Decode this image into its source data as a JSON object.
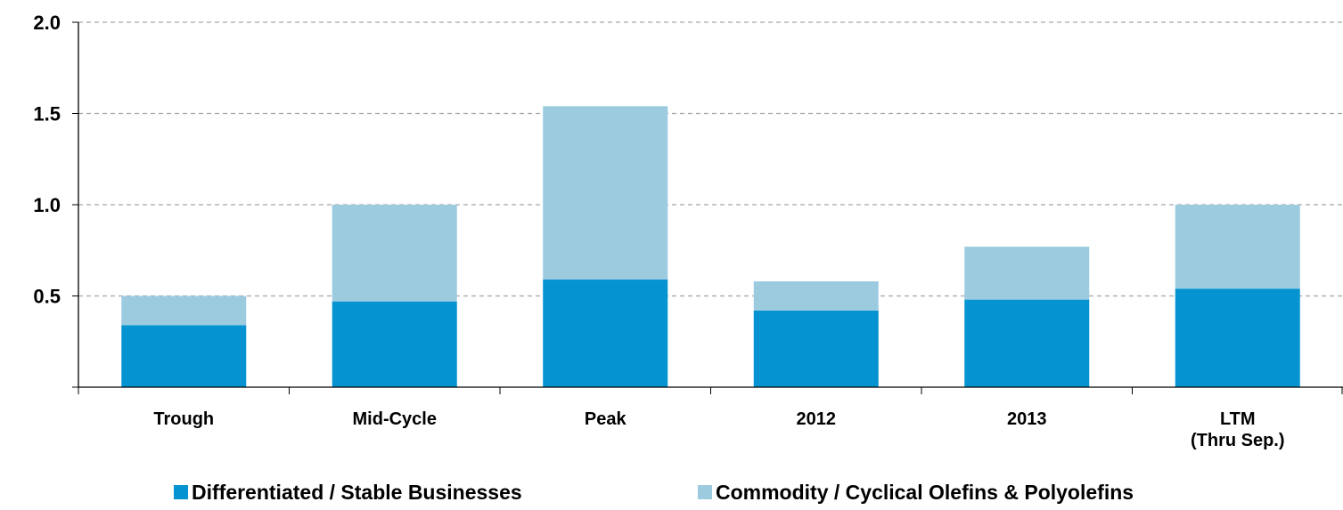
{
  "chart_data": {
    "type": "stacked_bar",
    "categories": [
      "Trough",
      "Mid-Cycle",
      "Peak",
      "2012",
      "2013",
      "LTM\n(Thru Sep.)"
    ],
    "series": [
      {
        "name": "Differentiated / Stable Businesses",
        "color": "#0693d1",
        "values": [
          0.34,
          0.47,
          0.59,
          0.42,
          0.48,
          0.54
        ]
      },
      {
        "name": "Commodity / Cyclical Olefins & Polyolefins",
        "color": "#9ccbe0",
        "values": [
          0.16,
          0.53,
          0.95,
          0.16,
          0.29,
          0.46
        ]
      }
    ],
    "ylim": [
      0,
      2.0
    ],
    "yticks": [
      {
        "value": 0.5,
        "label": "0.5"
      },
      {
        "value": 1,
        "label": "1.0"
      },
      1.5,
      {
        "value": 2,
        "label": "2.0"
      }
    ],
    "grid": true,
    "legend": "bottom"
  }
}
